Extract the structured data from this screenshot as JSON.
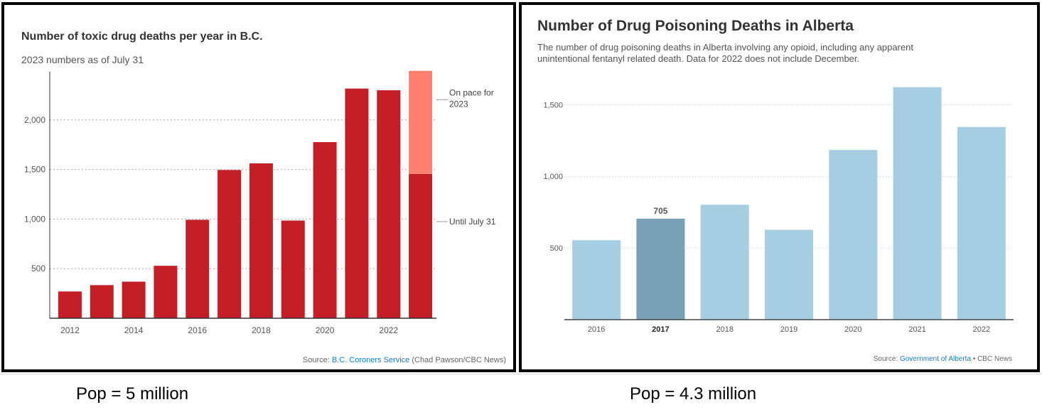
{
  "footer": {
    "bc_population": "Pop = 5 million",
    "ab_population": "Pop = 4.3 million"
  },
  "chart_data": [
    {
      "type": "bar",
      "title": "Number of toxic drug deaths per year in B.C.",
      "subtitle": "2023 numbers as of July 31",
      "categories": [
        "2012",
        "2013",
        "2014",
        "2015",
        "2016",
        "2017",
        "2018",
        "2019",
        "2020",
        "2021",
        "2022",
        "2023"
      ],
      "x_tick_labels": [
        "2012",
        "2014",
        "2016",
        "2018",
        "2020",
        "2022"
      ],
      "series": [
        {
          "name": "Until July 31",
          "color": "#c41e26",
          "values": [
            270,
            334,
            369,
            529,
            993,
            1495,
            1562,
            985,
            1776,
            2316,
            2299,
            1455
          ]
        },
        {
          "name": "On pace for 2023",
          "color": "#ff7f70",
          "values": [
            0,
            0,
            0,
            0,
            0,
            0,
            0,
            0,
            0,
            0,
            0,
            1040
          ]
        }
      ],
      "ylim": [
        0,
        2500
      ],
      "yticks": [
        500,
        1000,
        1500,
        2000
      ],
      "ytick_labels": [
        "500",
        "1,000",
        "1,500",
        "2,000"
      ],
      "grid": true,
      "annotations": {
        "on_pace_line1": "On pace for",
        "on_pace_line2": "2023",
        "until": "Until July 31"
      },
      "source_prefix": "Source: ",
      "source_link": "B.C. Coroners Service",
      "source_suffix": " (Chad Pawson/CBC News)",
      "link_color": "#1a7cc1"
    },
    {
      "type": "bar",
      "title": "Number of Drug Poisoning Deaths in Alberta",
      "subtitle_line1": "The number of drug poisoning deaths in Alberta involving any opioid, including any apparent",
      "subtitle_line2": "unintentional fentanyl related death. Data for 2022 does not include December.",
      "categories": [
        "2016",
        "2017",
        "2018",
        "2019",
        "2020",
        "2021",
        "2022"
      ],
      "values": [
        554,
        705,
        802,
        627,
        1184,
        1622,
        1344
      ],
      "highlighted_category": "2017",
      "highlight_label": "705",
      "bar_color": "#a5cee2",
      "highlight_color": "#79a1b5",
      "ylim": [
        0,
        1700
      ],
      "yticks": [
        500,
        1000,
        1500
      ],
      "ytick_labels": [
        "500",
        "1,000",
        "1,500"
      ],
      "grid": true,
      "source_prefix": "Source: ",
      "source_link": "Government of Alberta",
      "source_suffix": " • CBC News",
      "link_color": "#1a7cc1"
    }
  ]
}
